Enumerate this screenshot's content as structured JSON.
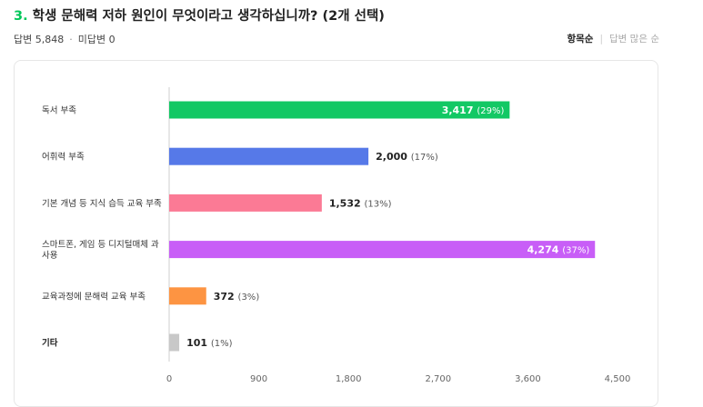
{
  "question": {
    "number": "3.",
    "text": "학생 문해력 저하 원인이 무엇이라고 생각하십니까? (2개 선택)"
  },
  "meta": {
    "answered": "답변 5,848",
    "unanswered": "미답변 0"
  },
  "sort_options": {
    "active": "항목순",
    "inactive": "답변 많은 순"
  },
  "colors": {
    "accent": "#03c75a",
    "label_inside": "#ffffff",
    "label_outside": "#222222",
    "pct_outside": "#555555"
  },
  "chart_data": {
    "type": "bar",
    "orientation": "horizontal",
    "categories": [
      [
        "독서 부족"
      ],
      [
        "어휘력 부족"
      ],
      [
        "기본 개념 등 지식 습득 교육 부족"
      ],
      [
        "스마트폰, 게임 등 디지털매체 과",
        "사용"
      ],
      [
        "교육과정에 문해력 교육 부족"
      ],
      [
        "기타"
      ]
    ],
    "values": [
      3417,
      2000,
      1532,
      4274,
      372,
      101
    ],
    "value_labels": [
      "3,417",
      "2,000",
      "1,532",
      "4,274",
      "372",
      "101"
    ],
    "percent_labels": [
      "(29%)",
      "(17%)",
      "(13%)",
      "(37%)",
      "(3%)",
      "(1%)"
    ],
    "colors": [
      "#12c864",
      "#5679e8",
      "#fb7a95",
      "#c85ef7",
      "#fd9442",
      "#c8c8c8"
    ],
    "label_inside": [
      true,
      false,
      false,
      true,
      false,
      false
    ],
    "bold_category": [
      false,
      false,
      false,
      false,
      false,
      true
    ],
    "xlim": [
      0,
      4500
    ],
    "x_ticks": [
      0,
      900,
      1800,
      2700,
      3600,
      4500
    ],
    "x_tick_labels": [
      "0",
      "900",
      "1,800",
      "2,700",
      "3,600",
      "4,500"
    ],
    "grid": false
  }
}
